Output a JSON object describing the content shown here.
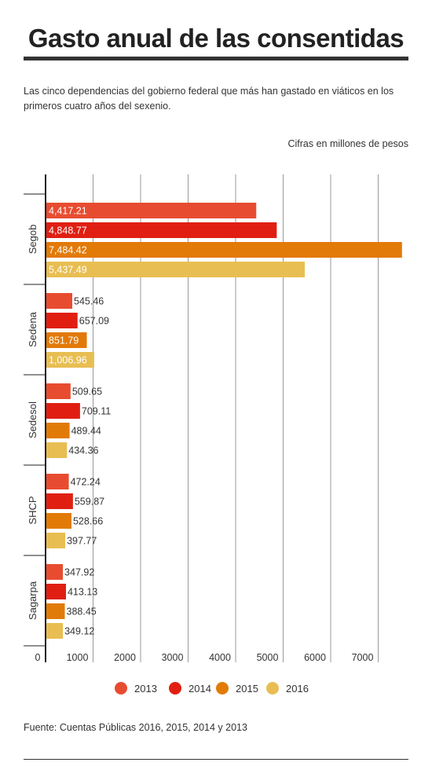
{
  "header": {
    "title": "Gasto anual de las consentidas",
    "subtitle": "Las cinco dependencias del gobierno federal que más han gastado en viáticos en los primeros cuatro años del sexenio.",
    "units": "Cifras en millones de pesos"
  },
  "footer": {
    "source": "Fuente: Cuentas Públicas 2016, 2015, 2014 y 2013"
  },
  "chart_data": {
    "type": "bar",
    "orientation": "horizontal",
    "categories": [
      "Segob",
      "Sedena",
      "Sedesol",
      "SHCP",
      "Sagarpa"
    ],
    "series": [
      {
        "name": "2013",
        "color": "#e84c30",
        "values": [
          4417.21,
          545.46,
          509.65,
          472.24,
          347.92
        ],
        "labels": [
          "4,417.21",
          "545.46",
          "509.65",
          "472.24",
          "347.92"
        ]
      },
      {
        "name": "2014",
        "color": "#e01f12",
        "values": [
          4848.77,
          657.09,
          709.11,
          559.87,
          413.13
        ],
        "labels": [
          "4,848.77",
          "657.09",
          "709.11",
          "559.87",
          "413.13"
        ]
      },
      {
        "name": "2015",
        "color": "#e27a08",
        "values": [
          7484.42,
          851.79,
          489.44,
          528.66,
          388.45
        ],
        "labels": [
          "7,484.42",
          "851.79",
          "489.44",
          "528.66",
          "388.45"
        ]
      },
      {
        "name": "2016",
        "color": "#e8be52",
        "values": [
          5437.49,
          1006.96,
          434.36,
          397.77,
          349.12
        ],
        "labels": [
          "5,437.49",
          "1,006.96",
          "434.36",
          "397.77",
          "349.12"
        ]
      }
    ],
    "xticks": [
      0,
      1000,
      2000,
      3000,
      4000,
      5000,
      6000,
      7000
    ],
    "xlim": [
      0,
      7800
    ],
    "grid": true,
    "legend_position": "bottom"
  }
}
